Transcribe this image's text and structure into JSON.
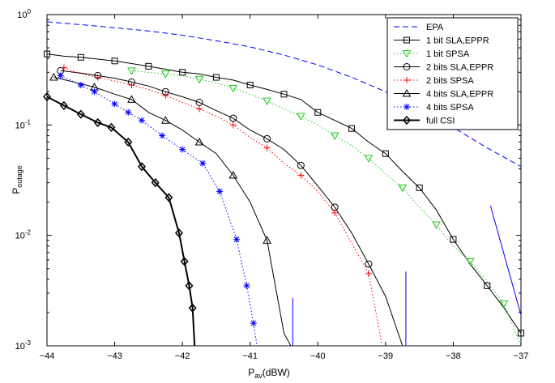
{
  "chart_data": {
    "type": "line",
    "xlabel_main": "P",
    "xlabel_sub": "av",
    "xlabel_unit": "(dBW)",
    "ylabel_main": "P",
    "ylabel_sub": "outage",
    "xlim": [
      -44,
      -37
    ],
    "ylim": [
      0.001,
      1
    ],
    "yscale": "log",
    "xticks": [
      -44,
      -43,
      -42,
      -41,
      -40,
      -39,
      -38,
      -37
    ],
    "xtick_labels": [
      "−44",
      "−43",
      "−42",
      "−41",
      "−40",
      "−39",
      "−38",
      "−37"
    ],
    "yticks": [
      {
        "base": "10",
        "exp": "0",
        "value": 1
      },
      {
        "base": "10",
        "exp": "-1",
        "value": 0.1
      },
      {
        "base": "10",
        "exp": "-2",
        "value": 0.01
      },
      {
        "base": "10",
        "exp": "-3",
        "value": 0.001
      }
    ],
    "grid": false,
    "legend_position": "top-right",
    "series": [
      {
        "name": "EPA",
        "color": "#0000ff",
        "dash": "dashed",
        "marker": "none",
        "x": [
          -44,
          -43.5,
          -43,
          -42.5,
          -42,
          -41.5,
          -41,
          -40.5,
          -40,
          -39.5,
          -39,
          -38.5,
          -38,
          -37.5,
          -37
        ],
        "y": [
          0.86,
          0.81,
          0.76,
          0.71,
          0.65,
          0.58,
          0.51,
          0.43,
          0.35,
          0.27,
          0.2,
          0.14,
          0.095,
          0.062,
          0.042
        ]
      },
      {
        "name": "1 bit SLA,EPPR",
        "color": "#000000",
        "dash": "solid",
        "marker": "square",
        "x": [
          -44,
          -43.75,
          -43.5,
          -43.25,
          -43,
          -42.75,
          -42.5,
          -42.25,
          -42,
          -41.75,
          -41.5,
          -41.25,
          -41,
          -40.75,
          -40.5,
          -40.25,
          -40,
          -39.75,
          -39.5,
          -39.25,
          -39,
          -38.75,
          -38.5,
          -38.25,
          -38,
          -37.75,
          -37.5,
          -37.25,
          -37
        ],
        "y": [
          0.44,
          0.42,
          0.41,
          0.395,
          0.38,
          0.36,
          0.34,
          0.32,
          0.3,
          0.29,
          0.27,
          0.255,
          0.23,
          0.21,
          0.19,
          0.17,
          0.13,
          0.11,
          0.093,
          0.07,
          0.055,
          0.038,
          0.027,
          0.017,
          0.0092,
          0.0055,
          0.0035,
          0.0022,
          0.0013
        ]
      },
      {
        "name": "1 bit SPSA",
        "color": "#22c822",
        "dash": "dotted",
        "marker": "triangle-down",
        "x": [
          -42.75,
          -42.5,
          -42.25,
          -42,
          -41.75,
          -41.5,
          -41.25,
          -41,
          -40.75,
          -40.5,
          -40.25,
          -40,
          -39.75,
          -39.5,
          -39.25,
          -39,
          -38.75,
          -38.5,
          -38.25,
          -38,
          -37.75,
          -37.5,
          -37.25,
          -37
        ],
        "y": [
          0.31,
          0.3,
          0.29,
          0.28,
          0.26,
          0.24,
          0.215,
          0.19,
          0.165,
          0.14,
          0.12,
          0.1,
          0.08,
          0.065,
          0.05,
          0.036,
          0.027,
          0.018,
          0.0125,
          0.008,
          0.0058,
          0.0038,
          0.0024,
          0.001
        ]
      },
      {
        "name": "2 bits SLA,EPPR",
        "color": "#000000",
        "dash": "solid",
        "marker": "circle",
        "x": [
          -43.8,
          -43.5,
          -43.25,
          -43,
          -42.75,
          -42.5,
          -42.25,
          -42,
          -41.75,
          -41.5,
          -41.25,
          -41,
          -40.75,
          -40.5,
          -40.25,
          -40,
          -39.75,
          -39.5,
          -39.25,
          -39,
          -38.75
        ],
        "y": [
          0.31,
          0.295,
          0.28,
          0.265,
          0.245,
          0.225,
          0.2,
          0.18,
          0.16,
          0.135,
          0.115,
          0.09,
          0.075,
          0.06,
          0.043,
          0.028,
          0.018,
          0.0105,
          0.0055,
          0.0028,
          0.001
        ]
      },
      {
        "name": "2 bits SPSA",
        "color": "#ff0000",
        "dash": "dotted",
        "marker": "plus",
        "x": [
          -43.75,
          -43.5,
          -43.25,
          -43,
          -42.75,
          -42.5,
          -42.25,
          -42,
          -41.75,
          -41.5,
          -41.25,
          -41,
          -40.75,
          -40.5,
          -40.25,
          -40,
          -39.75,
          -39.5,
          -39.25,
          -39.05
        ],
        "y": [
          0.33,
          0.29,
          0.27,
          0.25,
          0.23,
          0.21,
          0.185,
          0.16,
          0.14,
          0.12,
          0.1,
          0.077,
          0.062,
          0.045,
          0.035,
          0.025,
          0.016,
          0.0085,
          0.0045,
          0.001
        ]
      },
      {
        "name": "4 bits SLA,EPPR",
        "color": "#000000",
        "dash": "solid",
        "marker": "triangle-up",
        "x": [
          -43.9,
          -43.6,
          -43.3,
          -43,
          -42.75,
          -42.5,
          -42.25,
          -42,
          -41.75,
          -41.5,
          -41.25,
          -41,
          -40.75,
          -40.5,
          -40.4
        ],
        "y": [
          0.27,
          0.245,
          0.22,
          0.19,
          0.17,
          0.13,
          0.11,
          0.09,
          0.07,
          0.055,
          0.035,
          0.02,
          0.009,
          0.0013,
          0.001
        ]
      },
      {
        "name": "4 bits SPSA",
        "color": "#0000ff",
        "dash": "dotted",
        "marker": "asterisk",
        "x": [
          -43.8,
          -43.5,
          -43.3,
          -43,
          -42.8,
          -42.6,
          -42.3,
          -42,
          -41.7,
          -41.45,
          -41.2,
          -41.05,
          -40.95,
          -40.9
        ],
        "y": [
          0.28,
          0.23,
          0.2,
          0.155,
          0.13,
          0.11,
          0.08,
          0.06,
          0.045,
          0.025,
          0.0092,
          0.0035,
          0.0016,
          0.001
        ]
      },
      {
        "name": "full CSI",
        "color": "#000000",
        "dash": "solid-thick",
        "marker": "diamond",
        "x": [
          -44,
          -43.75,
          -43.5,
          -43.25,
          -43.05,
          -42.8,
          -42.6,
          -42.4,
          -42.2,
          -42.05,
          -41.97,
          -41.9,
          -41.85,
          -41.82
        ],
        "y": [
          0.18,
          0.15,
          0.125,
          0.105,
          0.095,
          0.07,
          0.042,
          0.03,
          0.022,
          0.0105,
          0.0058,
          0.0035,
          0.0022,
          0.001
        ]
      }
    ],
    "extra_lines": [
      {
        "color": "#0000ff",
        "x": [
          -40.37,
          -40.37
        ],
        "y": [
          0.001,
          0.0027
        ]
      },
      {
        "color": "#0000ff",
        "x": [
          -38.7,
          -38.7
        ],
        "y": [
          0.001,
          0.0047
        ]
      },
      {
        "color": "#0000ff",
        "x": [
          -37.45,
          -37.0
        ],
        "y": [
          0.0185,
          0.0019
        ]
      }
    ]
  }
}
